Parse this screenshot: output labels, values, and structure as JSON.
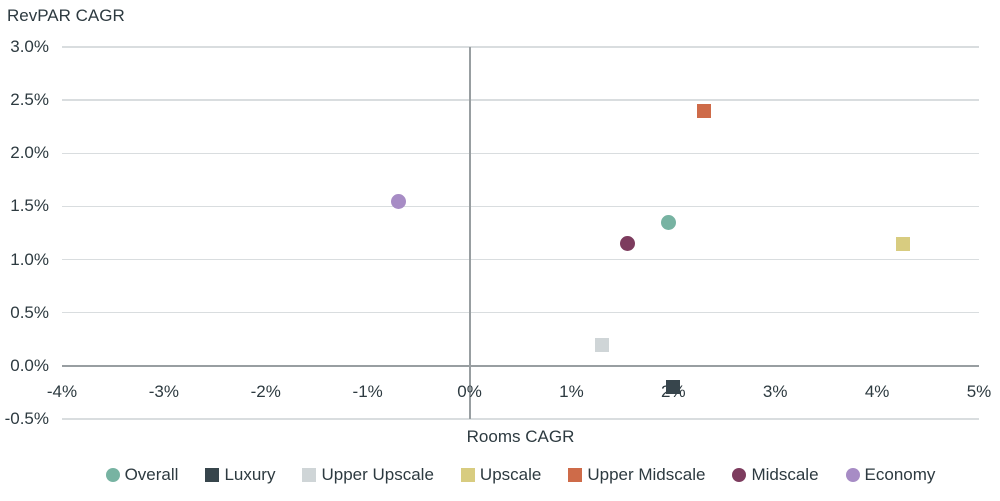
{
  "chart_data": {
    "type": "scatter",
    "title": "",
    "ylabel": "RevPAR CAGR",
    "xlabel": "Rooms CAGR",
    "xlim": [
      -4,
      5
    ],
    "ylim": [
      -0.5,
      3.0
    ],
    "x_unit": "%",
    "y_unit": "%",
    "grid": "horizontal gridlines on; darker axis lines at x=0 and y=0",
    "legend_position": "bottom-center",
    "x_ticks": [
      {
        "label": "-4%",
        "value": -4
      },
      {
        "label": "-3%",
        "value": -3
      },
      {
        "label": "-2%",
        "value": -2
      },
      {
        "label": "-1%",
        "value": -1
      },
      {
        "label": "0%",
        "value": 0
      },
      {
        "label": "1%",
        "value": 1
      },
      {
        "label": "2%",
        "value": 2
      },
      {
        "label": "3%",
        "value": 3
      },
      {
        "label": "4%",
        "value": 4
      },
      {
        "label": "5%",
        "value": 5
      }
    ],
    "y_ticks": [
      {
        "label": "3.0%",
        "value": 3.0
      },
      {
        "label": "2.5%",
        "value": 2.5
      },
      {
        "label": "2.0%",
        "value": 2.0
      },
      {
        "label": "1.5%",
        "value": 1.5
      },
      {
        "label": "1.0%",
        "value": 1.0
      },
      {
        "label": "0.5%",
        "value": 0.5
      },
      {
        "label": "0.0%",
        "value": 0.0
      },
      {
        "label": "-0.5%",
        "value": -0.5
      }
    ],
    "series": [
      {
        "name": "Overall",
        "marker": "circle",
        "color": "#77b3a2",
        "x": 1.95,
        "y": 1.35
      },
      {
        "name": "Luxury",
        "marker": "square",
        "color": "#37454c",
        "x": 2.0,
        "y": -0.2
      },
      {
        "name": "Upper Upscale",
        "marker": "square",
        "color": "#cfd5d7",
        "x": 1.3,
        "y": 0.2
      },
      {
        "name": "Upscale",
        "marker": "square",
        "color": "#d8cc80",
        "x": 4.25,
        "y": 1.15
      },
      {
        "name": "Upper Midscale",
        "marker": "square",
        "color": "#ce6b49",
        "x": 2.3,
        "y": 2.4
      },
      {
        "name": "Midscale",
        "marker": "circle",
        "color": "#7d3c5e",
        "x": 1.55,
        "y": 1.15
      },
      {
        "name": "Economy",
        "marker": "circle",
        "color": "#a78cc5",
        "x": -0.7,
        "y": 1.55
      }
    ]
  },
  "colors": {
    "background": "#ffffff",
    "text": "#2d3a40",
    "gridline": "#d9dddf",
    "axis_line": "#989ea1"
  }
}
